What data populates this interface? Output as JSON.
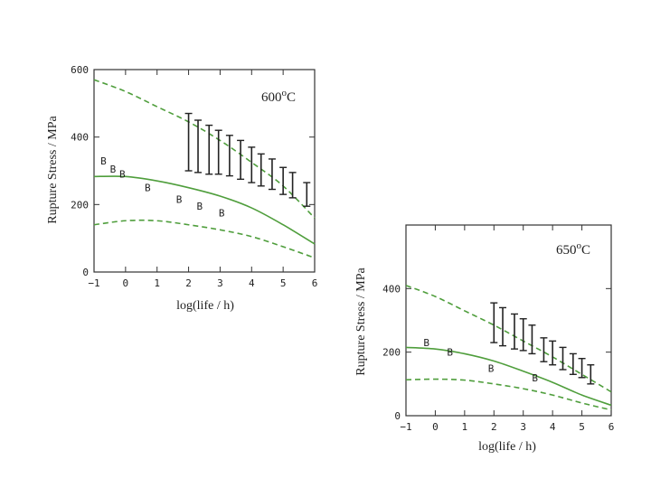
{
  "chart_data": [
    {
      "type": "line",
      "annotation": "600",
      "annotation_sup": "o",
      "annotation_unit": "C",
      "xlabel": "log(life / h)",
      "ylabel": "Rupture Stress / MPa",
      "xlim": [
        -1,
        6
      ],
      "ylim": [
        0,
        600
      ],
      "xticks": [
        -1,
        0,
        1,
        2,
        3,
        4,
        5,
        6
      ],
      "yticks": [
        0,
        200,
        400,
        600
      ],
      "colors": {
        "curve": "#4f9e3c",
        "error": "#222222",
        "frame": "#333333"
      },
      "series": [
        {
          "style": "solid",
          "x": [
            -1,
            0,
            1,
            2,
            3,
            4,
            5,
            6
          ],
          "y": [
            283,
            283,
            270,
            250,
            225,
            190,
            140,
            83
          ]
        },
        {
          "style": "dashed",
          "x": [
            -1,
            0,
            1,
            2,
            3,
            4,
            5,
            6
          ],
          "y": [
            570,
            535,
            490,
            445,
            390,
            325,
            255,
            160
          ]
        },
        {
          "style": "dashed",
          "x": [
            -1,
            0,
            1,
            2,
            3,
            4,
            5,
            6
          ],
          "y": [
            140,
            152,
            152,
            140,
            125,
            105,
            75,
            42
          ]
        }
      ],
      "error_bars": [
        {
          "x": 2.0,
          "low": 300,
          "high": 470
        },
        {
          "x": 2.3,
          "low": 295,
          "high": 450
        },
        {
          "x": 2.65,
          "low": 290,
          "high": 435
        },
        {
          "x": 2.95,
          "low": 290,
          "high": 420
        },
        {
          "x": 3.3,
          "low": 285,
          "high": 405
        },
        {
          "x": 3.65,
          "low": 275,
          "high": 390
        },
        {
          "x": 4.0,
          "low": 265,
          "high": 370
        },
        {
          "x": 4.3,
          "low": 255,
          "high": 350
        },
        {
          "x": 4.65,
          "low": 245,
          "high": 335
        },
        {
          "x": 5.0,
          "low": 230,
          "high": 310
        },
        {
          "x": 5.3,
          "low": 220,
          "high": 295
        },
        {
          "x": 5.75,
          "low": 195,
          "high": 265
        }
      ],
      "markers": [
        {
          "label": "B",
          "x": -0.7,
          "y": 330
        },
        {
          "label": "B",
          "x": -0.4,
          "y": 305
        },
        {
          "label": "B",
          "x": -0.1,
          "y": 290
        },
        {
          "label": "B",
          "x": 0.7,
          "y": 250
        },
        {
          "label": "B",
          "x": 1.7,
          "y": 215
        },
        {
          "label": "B",
          "x": 2.35,
          "y": 195
        },
        {
          "label": "B",
          "x": 3.05,
          "y": 175
        }
      ]
    },
    {
      "type": "line",
      "annotation": "650",
      "annotation_sup": "o",
      "annotation_unit": "C",
      "xlabel": "log(life / h)",
      "ylabel": "Rupture Stress / MPa",
      "xlim": [
        -1,
        6
      ],
      "ylim": [
        0,
        600
      ],
      "xticks": [
        -1,
        0,
        1,
        2,
        3,
        4,
        5,
        6
      ],
      "yticks": [
        0,
        200,
        400
      ],
      "colors": {
        "curve": "#4f9e3c",
        "error": "#222222",
        "frame": "#333333"
      },
      "series": [
        {
          "style": "solid",
          "x": [
            -1,
            0,
            1,
            2,
            3,
            4,
            5,
            6
          ],
          "y": [
            215,
            210,
            195,
            172,
            140,
            105,
            65,
            33
          ]
        },
        {
          "style": "dashed",
          "x": [
            -1,
            0,
            1,
            2,
            3,
            4,
            5,
            6
          ],
          "y": [
            410,
            375,
            330,
            285,
            235,
            185,
            130,
            75
          ]
        },
        {
          "style": "dashed",
          "x": [
            -1,
            0,
            1,
            2,
            3,
            4,
            5,
            6
          ],
          "y": [
            113,
            115,
            112,
            100,
            85,
            65,
            40,
            18
          ]
        }
      ],
      "error_bars": [
        {
          "x": 2.0,
          "low": 230,
          "high": 355
        },
        {
          "x": 2.3,
          "low": 220,
          "high": 340
        },
        {
          "x": 2.7,
          "low": 210,
          "high": 320
        },
        {
          "x": 3.0,
          "low": 205,
          "high": 305
        },
        {
          "x": 3.3,
          "low": 195,
          "high": 285
        },
        {
          "x": 3.7,
          "low": 170,
          "high": 245
        },
        {
          "x": 4.0,
          "low": 160,
          "high": 235
        },
        {
          "x": 4.35,
          "low": 145,
          "high": 215
        },
        {
          "x": 4.7,
          "low": 130,
          "high": 195
        },
        {
          "x": 5.0,
          "low": 120,
          "high": 180
        },
        {
          "x": 5.3,
          "low": 100,
          "high": 160
        }
      ],
      "markers": [
        {
          "label": "B",
          "x": -0.3,
          "y": 230
        },
        {
          "label": "B",
          "x": 0.5,
          "y": 200
        },
        {
          "label": "B",
          "x": 1.9,
          "y": 150
        },
        {
          "label": "B",
          "x": 3.4,
          "y": 120
        }
      ]
    }
  ]
}
